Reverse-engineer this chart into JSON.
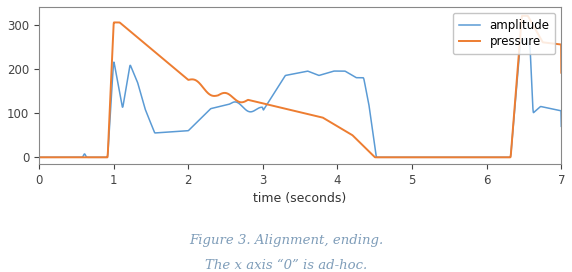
{
  "title_line1": "Figure 3. Alignment, ending.",
  "title_line2": "The x axis “0” is ad-hoc.",
  "xlabel": "time (seconds)",
  "xlim": [
    0,
    7.0
  ],
  "ylim": [
    -15,
    340
  ],
  "yticks": [
    0,
    100,
    200,
    300
  ],
  "xticks": [
    0,
    1,
    2,
    3,
    4,
    5,
    6,
    7
  ],
  "amplitude_color": "#5b9bd5",
  "pressure_color": "#ed7d31",
  "legend_labels": [
    "amplitude",
    "pressure"
  ],
  "figure_color": "#ffffff",
  "caption_color": "#7f9db9"
}
